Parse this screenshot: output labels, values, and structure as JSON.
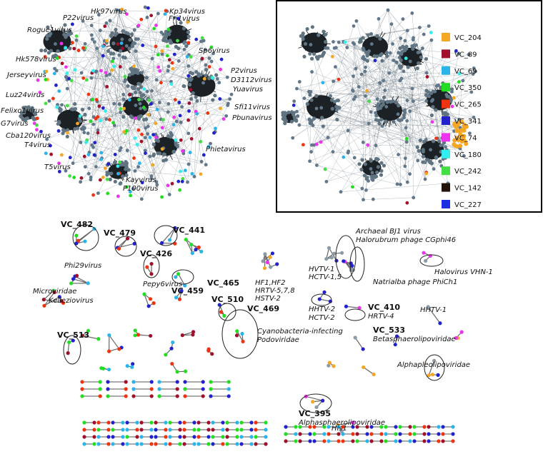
{
  "panel_a": {
    "labels": [
      "Hk97virus",
      "Kp34virus",
      "P22virus",
      "Fri1virus",
      "Rogue1virus",
      "Sp6virus",
      "Hk578virus",
      "P2virus",
      "Jerseyvirus",
      "D3112virus",
      "Yuavirus",
      "Luz24virus",
      "Felixo1virus",
      "Sfi11virus",
      "G7virus",
      "Pbunavirus",
      "Cba120virus",
      "T4virus",
      "Phietavirus",
      "T5virus",
      "Kayvirus",
      "P100virus"
    ]
  },
  "panel_b": {
    "legend": [
      {
        "name": "VC_204",
        "color": "#f5a623"
      },
      {
        "name": "VC_89",
        "color": "#a0102a"
      },
      {
        "name": "VC_69",
        "color": "#2ab4ea"
      },
      {
        "name": "VC_350",
        "color": "#22dd22"
      },
      {
        "name": "VC_265",
        "color": "#ee3311"
      },
      {
        "name": "VC_341",
        "color": "#2222cc"
      },
      {
        "name": "VC_74",
        "color": "#ee33ee"
      },
      {
        "name": "VC_180",
        "color": "#33eeee"
      },
      {
        "name": "VC_242",
        "color": "#44dd44"
      },
      {
        "name": "VC_142",
        "color": "#221208"
      },
      {
        "name": "VC_227",
        "color": "#1f2ee0"
      }
    ]
  },
  "panel_c": {
    "clusters": [
      "VC_482",
      "VC_479",
      "VC_441",
      "VC_426",
      "VC_459",
      "VC_465",
      "VC_510",
      "VC_469",
      "VC_513",
      "VC_410",
      "VC_533",
      "VC_395"
    ],
    "taxa": [
      "Phi29virus",
      "Microviridae",
      "Pepy6virus",
      "Kelleziovirus",
      "HF1,HF2",
      "HRTV-5,7,8",
      "HSTV-2",
      "HVTV-1",
      "HCTV-1,5",
      "Archaeal BJ1 virus",
      "Halorubrum phage CGphi46",
      "Halovirus VHN-1",
      "Natrialba phage PhiCh1",
      "HHTV-2",
      "HCTV-2",
      "HRTV-4",
      "HHTV-1",
      "Cyanobacteria-infecting",
      "Podoviridae",
      "Betasphaerolipoviridae",
      "Alphapleolipoviridae",
      "Alphasphaerolipoviridae",
      "His1"
    ]
  }
}
